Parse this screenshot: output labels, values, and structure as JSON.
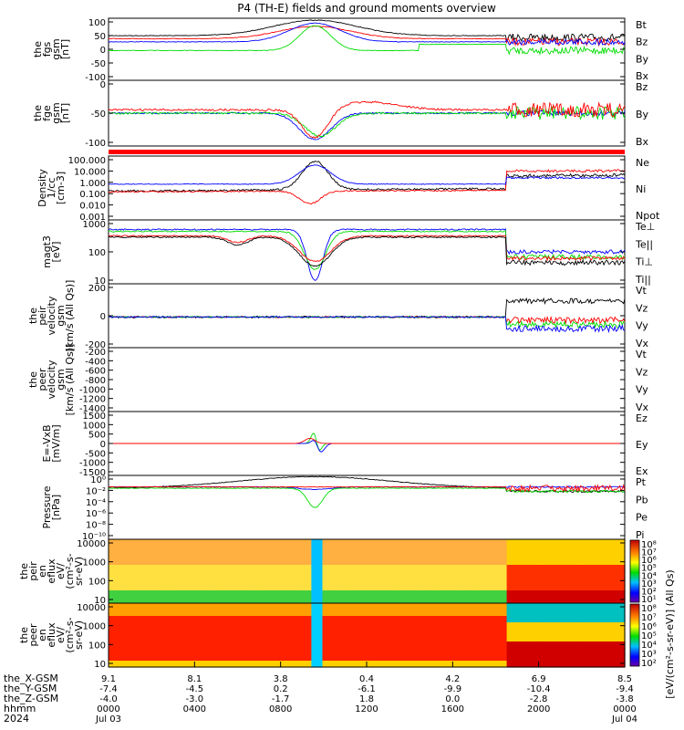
{
  "title": "P4 (TH-E) fields and ground moments overview",
  "colors": {
    "black": "#000000",
    "red": "#ff0000",
    "green": "#00dd00",
    "blue": "#0000ff"
  },
  "chart_data": [
    {
      "type": "line",
      "id": "fgs",
      "ylabel": [
        "the",
        "fgs",
        "gsm",
        "[nT]"
      ],
      "yticks": [
        "100",
        "50",
        "0",
        "-50",
        "-100"
      ],
      "ylim": [
        -100,
        100
      ],
      "legend": [
        {
          "name": "Bt",
          "color": "black"
        },
        {
          "name": "Bz",
          "color": "red"
        },
        {
          "name": "By",
          "color": "green"
        },
        {
          "name": "Bx",
          "color": "blue"
        }
      ]
    },
    {
      "type": "line",
      "id": "fge",
      "ylabel": [
        "the",
        "fge",
        "gsm",
        "[nT]"
      ],
      "yticks": [
        "0",
        "-50",
        "-100"
      ],
      "ylim": [
        -120,
        40
      ],
      "legend": [
        {
          "name": "Bz",
          "color": "red"
        },
        {
          "name": "By",
          "color": "green"
        },
        {
          "name": "Bx",
          "color": "blue"
        }
      ]
    },
    {
      "type": "line",
      "id": "density",
      "ylabel": [
        "Density",
        "1/cc",
        "[cm-3]"
      ],
      "yticks": [
        "100.000",
        "10.000",
        "1.000",
        "0.100",
        "0.010",
        "0.001"
      ],
      "log": true,
      "legend": [
        {
          "name": "Ne",
          "color": "red"
        },
        {
          "name": "Ni",
          "color": "black"
        },
        {
          "name": "Npot",
          "color": "blue"
        }
      ]
    },
    {
      "type": "line",
      "id": "temperature",
      "ylabel": [
        "magt3",
        "[eV]"
      ],
      "yticks": [
        "1000",
        "100",
        "10"
      ],
      "log": true,
      "legend": [
        {
          "name": "Te⊥",
          "color": "red"
        },
        {
          "name": "Te||",
          "color": "black"
        },
        {
          "name": "Ti⊥",
          "color": "green"
        },
        {
          "name": "Ti||",
          "color": "green"
        }
      ]
    },
    {
      "type": "line",
      "id": "peir_velocity",
      "ylabel": [
        "the",
        "peir",
        "velocity",
        "gsm",
        "[km/s (All Qs)]"
      ],
      "yticks": [
        "200",
        "0",
        "-200"
      ],
      "ylim": [
        -200,
        300
      ],
      "legend": [
        {
          "name": "Vt",
          "color": "black"
        },
        {
          "name": "Vz",
          "color": "red"
        },
        {
          "name": "Vy",
          "color": "green"
        },
        {
          "name": "Vx",
          "color": "blue"
        }
      ]
    },
    {
      "type": "line",
      "id": "peer_velocity",
      "ylabel": [
        "the",
        "peer",
        "velocity",
        "gsm",
        "[km/s (All Qs)]"
      ],
      "yticks": [
        "-200",
        "-400",
        "-600",
        "-800",
        "-1000",
        "-1200",
        "-1400"
      ],
      "ylim": [
        -1500,
        0
      ],
      "legend": [
        {
          "name": "Vt",
          "color": "black"
        },
        {
          "name": "Vz",
          "color": "red"
        },
        {
          "name": "Vy",
          "color": "green"
        },
        {
          "name": "Vx",
          "color": "blue"
        }
      ]
    },
    {
      "type": "line",
      "id": "efield",
      "ylabel": [
        "E=-VxB",
        "[mV/m]"
      ],
      "yticks": [
        "1500",
        "1000",
        "500",
        "0",
        "-500",
        "-1000",
        "-1500"
      ],
      "ylim": [
        -1500,
        1500
      ],
      "legend": [
        {
          "name": "Ez",
          "color": "red"
        },
        {
          "name": "Ey",
          "color": "green"
        },
        {
          "name": "Ex",
          "color": "blue"
        }
      ]
    },
    {
      "type": "line",
      "id": "pressure",
      "ylabel": [
        "Pressure",
        "[nPa]"
      ],
      "yticks": [
        "10⁰",
        "10⁻²",
        "10⁻⁴",
        "10⁻⁶",
        "10⁻⁸",
        "10⁻¹⁰"
      ],
      "log": true,
      "legend": [
        {
          "name": "Pt",
          "color": "black"
        },
        {
          "name": "Pb",
          "color": "red"
        },
        {
          "name": "Pe",
          "color": "green"
        },
        {
          "name": "Pi",
          "color": "blue"
        }
      ]
    },
    {
      "type": "heatmap",
      "id": "peir_eflux",
      "ylabel": [
        "the",
        "peir",
        "en",
        "eflux",
        "eV/",
        "(cm²-s-",
        "sr-eV)"
      ],
      "yticks": [
        "10000",
        "1000",
        "100",
        "10"
      ],
      "log": true,
      "colorbar_ticks": [
        "10⁸",
        "10⁷",
        "10⁶",
        "10⁵",
        "10⁴",
        "10³",
        "10²",
        "10¹"
      ]
    },
    {
      "type": "heatmap",
      "id": "peer_eflux",
      "ylabel": [
        "the",
        "peer",
        "en",
        "eflux",
        "eV/",
        "(cm²-s-",
        "sr-eV)"
      ],
      "yticks": [
        "10000",
        "1000",
        "100",
        "10"
      ],
      "log": true,
      "colorbar_ticks": [
        "10⁸",
        "10⁷",
        "10⁶",
        "10⁵",
        "10⁴",
        "10³",
        "10²"
      ],
      "colorbar_label": "[eV/(cm²-s-sr-eV)] (All Qs)"
    }
  ],
  "x_axis": {
    "row_labels": [
      "the_X-GSM",
      "the_Y-GSM",
      "the_Z-GSM",
      "hhmm",
      "2024"
    ],
    "ticks": [
      {
        "vals": [
          "9.1",
          "-7.4",
          "-4.0",
          "0000",
          "Jul 03"
        ]
      },
      {
        "vals": [
          "8.1",
          "-4.5",
          "-3.0",
          "0400",
          ""
        ]
      },
      {
        "vals": [
          "3.8",
          "0.2",
          "-1.7",
          "0800",
          ""
        ]
      },
      {
        "vals": [
          "0.4",
          "-6.1",
          "1.8",
          "1200",
          ""
        ]
      },
      {
        "vals": [
          "4.2",
          "-9.9",
          "0.0",
          "1600",
          ""
        ]
      },
      {
        "vals": [
          "6.9",
          "-10.4",
          "-2.8",
          "2000",
          ""
        ]
      },
      {
        "vals": [
          "8.5",
          "-9.4",
          "-3.8",
          "0000",
          "Jul 04"
        ]
      }
    ]
  }
}
